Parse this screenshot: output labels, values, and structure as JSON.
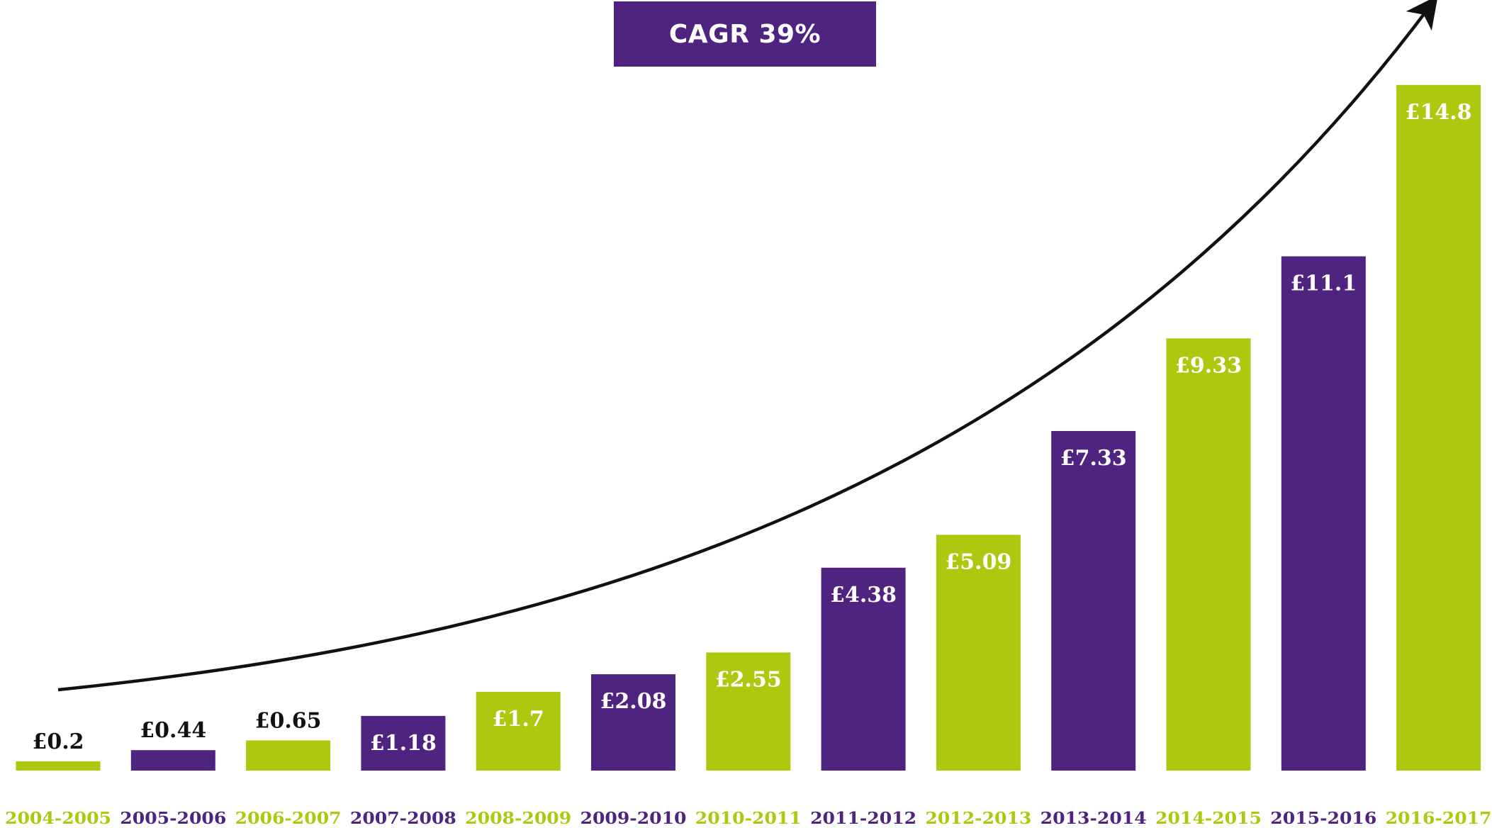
{
  "badge": {
    "text": "CAGR 39%",
    "color": "#4f2481",
    "text_color": "#ffffff"
  },
  "colors": {
    "green": "#aec80f",
    "purple": "#4f2481",
    "arrow": "#111111",
    "outside_label": "#111111",
    "inside_label": "#ffffff"
  },
  "chart_data": {
    "type": "bar",
    "categories": [
      "2004-2005",
      "2005-2006",
      "2006-2007",
      "2007-2008",
      "2008-2009",
      "2009-2010",
      "2010-2011",
      "2011-2012",
      "2012-2013",
      "2013-2014",
      "2014-2015",
      "2015-2016",
      "2016-2017"
    ],
    "values": [
      0.2,
      0.44,
      0.65,
      1.18,
      1.7,
      2.08,
      2.55,
      4.38,
      5.09,
      7.33,
      9.33,
      11.1,
      14.8
    ],
    "data_labels": [
      "£0.2",
      "£0.44",
      "£0.65",
      "£1.18",
      "£1.7",
      "£2.08",
      "£2.55",
      "£4.38",
      "£5.09",
      "£7.33",
      "£9.33",
      "£11.1",
      "£14.8"
    ],
    "bar_colors": [
      "green",
      "purple",
      "green",
      "purple",
      "green",
      "purple",
      "green",
      "purple",
      "green",
      "purple",
      "green",
      "purple",
      "green"
    ],
    "labels_outside": [
      true,
      true,
      true,
      false,
      false,
      false,
      false,
      false,
      false,
      false,
      false,
      false,
      false
    ],
    "title": "",
    "xlabel": "",
    "ylabel": "",
    "ylim": [
      0,
      16
    ],
    "grid": false,
    "legend": "none",
    "annotation": "CAGR 39%"
  }
}
